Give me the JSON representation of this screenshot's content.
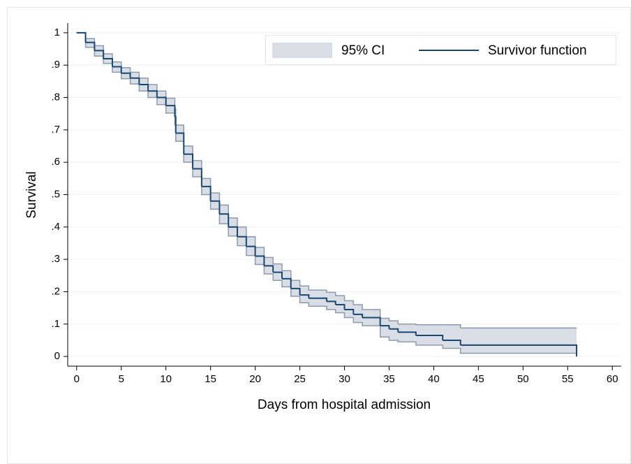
{
  "chart_data": {
    "type": "survival",
    "xlabel": "Days from hospital admission",
    "ylabel": "Survival",
    "xlim": [
      -1,
      61
    ],
    "ylim": [
      -0.03,
      1.03
    ],
    "xticks": [
      0,
      5,
      10,
      15,
      20,
      25,
      30,
      35,
      40,
      45,
      50,
      55,
      60
    ],
    "yticks": [
      0,
      {
        "value": 0.1,
        "label": ".1"
      },
      {
        "value": 0.2,
        "label": ".2"
      },
      {
        "value": 0.3,
        "label": ".3"
      },
      {
        "value": 0.4,
        "label": ".4"
      },
      {
        "value": 0.5,
        "label": ".5"
      },
      {
        "value": 0.6,
        "label": ".6"
      },
      {
        "value": 0.7,
        "label": ".7"
      },
      {
        "value": 0.8,
        "label": ".8"
      },
      {
        "value": 0.9,
        "label": ".9"
      },
      1
    ],
    "grid": true,
    "legend": "top-right",
    "x": [
      0,
      1,
      2,
      3,
      4,
      5,
      6,
      7,
      8,
      9,
      10,
      11,
      11.1,
      12,
      13,
      14,
      15,
      16,
      17,
      18,
      19,
      20,
      21,
      22,
      23,
      24,
      25,
      26,
      28,
      29,
      30,
      31,
      32,
      34,
      35,
      36,
      38,
      41,
      43,
      56
    ],
    "series": [
      {
        "name": "95% CI",
        "kind": "band",
        "color": "#d9dde6",
        "edge_color": "#8e9aad",
        "lower": [
          1,
          0.955,
          0.928,
          0.905,
          0.878,
          0.858,
          0.842,
          0.82,
          0.8,
          0.778,
          0.752,
          0.715,
          0.665,
          0.6,
          0.555,
          0.5,
          0.455,
          0.41,
          0.372,
          0.342,
          0.312,
          0.284,
          0.255,
          0.235,
          0.215,
          0.186,
          0.166,
          0.155,
          0.145,
          0.135,
          0.12,
          0.105,
          0.095,
          0.06,
          0.05,
          0.045,
          0.035,
          0.025,
          0.01,
          null
        ],
        "upper": [
          1,
          0.982,
          0.96,
          0.935,
          0.91,
          0.892,
          0.878,
          0.86,
          0.84,
          0.82,
          0.798,
          0.765,
          0.715,
          0.65,
          0.605,
          0.55,
          0.505,
          0.468,
          0.428,
          0.4,
          0.37,
          0.337,
          0.306,
          0.286,
          0.265,
          0.235,
          0.218,
          0.205,
          0.198,
          0.188,
          0.172,
          0.16,
          0.145,
          0.118,
          0.11,
          0.1,
          0.098,
          0.098,
          0.088,
          null
        ]
      },
      {
        "name": "Survivor function",
        "kind": "step",
        "color": "#1a476f",
        "values": [
          1,
          0.97,
          0.945,
          0.92,
          0.895,
          0.875,
          0.86,
          0.84,
          0.82,
          0.8,
          0.775,
          0.74,
          0.69,
          0.625,
          0.58,
          0.525,
          0.48,
          0.44,
          0.4,
          0.37,
          0.34,
          0.31,
          0.28,
          0.26,
          0.24,
          0.21,
          0.19,
          0.18,
          0.17,
          0.16,
          0.145,
          0.13,
          0.12,
          0.095,
          0.085,
          0.075,
          0.065,
          0.05,
          0.035,
          0
        ]
      }
    ]
  }
}
